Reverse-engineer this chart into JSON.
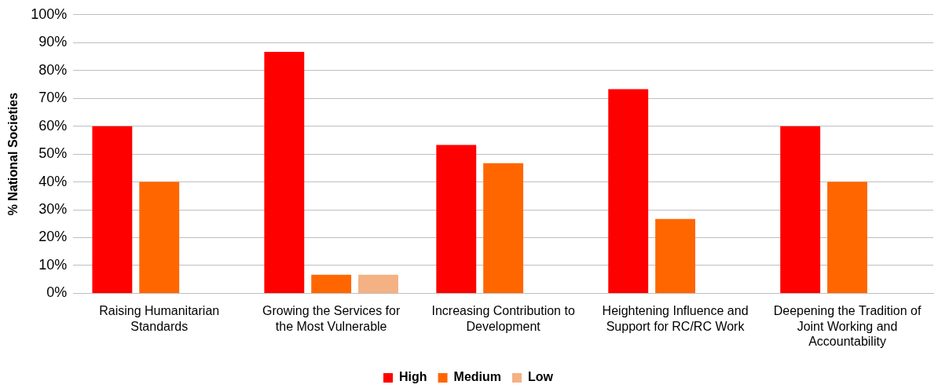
{
  "chart_data": {
    "type": "bar",
    "ylabel": "% National Societies",
    "categories": [
      "Raising Humanitarian Standards",
      "Growing the Services for the Most Vulnerable",
      "Increasing Contribution to Development",
      "Heightening Influence and Support for RC/RC Work",
      "Deepening the Tradition of Joint Working and Accountability"
    ],
    "series": [
      {
        "name": "High",
        "color": "#ff0000",
        "values": [
          60,
          86.7,
          53.3,
          73.3,
          60
        ]
      },
      {
        "name": "Medium",
        "color": "#ff6600",
        "values": [
          40,
          6.7,
          46.7,
          26.7,
          40
        ]
      },
      {
        "name": "Low",
        "color": "#f4b183",
        "values": [
          0,
          6.7,
          0,
          0,
          0
        ]
      }
    ],
    "ylim": [
      0,
      100
    ],
    "yticks": [
      {
        "value": 0,
        "label": "0%"
      },
      {
        "value": 10,
        "label": "10%"
      },
      {
        "value": 20,
        "label": "20%"
      },
      {
        "value": 30,
        "label": "30%"
      },
      {
        "value": 40,
        "label": "40%"
      },
      {
        "value": 50,
        "label": "50%"
      },
      {
        "value": 60,
        "label": "60%"
      },
      {
        "value": 70,
        "label": "70%"
      },
      {
        "value": 80,
        "label": "80%"
      },
      {
        "value": 90,
        "label": "90%"
      },
      {
        "value": 100,
        "label": "100%"
      }
    ],
    "grid": "y",
    "legend": "bottom"
  }
}
